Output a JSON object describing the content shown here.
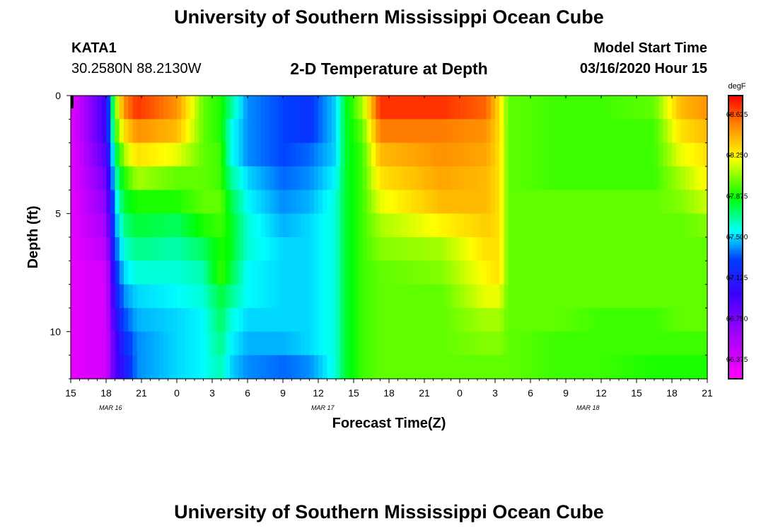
{
  "page": {
    "title_top": "University of Southern Mississippi Ocean Cube",
    "title_bottom": "University of Southern Mississippi Ocean Cube",
    "station_id": "KATA1",
    "station_coords": "30.2580N 88.2130W",
    "plot_title": "2-D Temperature at Depth",
    "model_label": "Model Start Time",
    "model_time": "03/16/2020 Hour 15"
  },
  "chart_data": {
    "type": "heatmap",
    "title": "2-D Temperature at Depth",
    "xlabel": "Forecast Time(Z)",
    "ylabel": "Depth (ft)",
    "x_hours": [
      0,
      72
    ],
    "y_depth_ft": [
      0,
      12
    ],
    "x_tick_labels": [
      "15",
      "18",
      "21",
      "0",
      "3",
      "6",
      "9",
      "12",
      "15",
      "18",
      "21",
      "0",
      "3",
      "6",
      "9",
      "12",
      "15",
      "18",
      "21"
    ],
    "y_tick_labels": [
      "0",
      "5",
      "10"
    ],
    "y_tick_values": [
      0,
      5,
      10
    ],
    "date_labels": [
      {
        "text": "MAR 16",
        "hour": 4.5
      },
      {
        "text": "MAR 17",
        "hour": 28.5
      },
      {
        "text": "MAR 18",
        "hour": 58.5
      }
    ],
    "colorbar": {
      "unit": "degF",
      "range": [
        66.2,
        68.8
      ],
      "tick_labels": [
        "68.625",
        "68.250",
        "67.875",
        "67.500",
        "67.125",
        "66.750",
        "66.375"
      ],
      "tick_values": [
        68.625,
        68.25,
        67.875,
        67.5,
        67.125,
        66.75,
        66.375
      ]
    },
    "keyframes": [
      {
        "hour": 0,
        "temps": [
          66.3,
          66.3,
          66.3,
          66.3,
          66.3,
          66.3,
          66.3,
          66.3,
          66.3,
          66.3,
          66.3,
          66.3
        ]
      },
      {
        "hour": 4,
        "temps": [
          67.0,
          67.0,
          66.9,
          66.8,
          66.7,
          66.6,
          66.5,
          66.4,
          66.4,
          66.4,
          66.4,
          66.4
        ]
      },
      {
        "hour": 5,
        "temps": [
          68.0,
          67.9,
          67.7,
          67.6,
          67.5,
          67.4,
          67.3,
          67.2,
          67.1,
          67.0,
          66.9,
          66.9
        ]
      },
      {
        "hour": 6,
        "temps": [
          68.5,
          68.3,
          68.1,
          67.9,
          67.8,
          67.7,
          67.6,
          67.5,
          67.4,
          67.3,
          67.2,
          67.1
        ]
      },
      {
        "hour": 7.5,
        "temps": [
          68.7,
          68.5,
          68.3,
          68.1,
          67.9,
          67.8,
          67.7,
          67.6,
          67.5,
          67.45,
          67.4,
          67.4
        ]
      },
      {
        "hour": 12,
        "temps": [
          68.5,
          68.4,
          68.2,
          68.0,
          67.9,
          67.75,
          67.65,
          67.6,
          67.55,
          67.5,
          67.5,
          67.5
        ]
      },
      {
        "hour": 15,
        "temps": [
          68.0,
          68.0,
          68.0,
          68.0,
          68.0,
          67.9,
          67.75,
          67.65,
          67.6,
          67.55,
          67.55,
          67.55
        ]
      },
      {
        "hour": 17,
        "temps": [
          67.9,
          67.9,
          67.95,
          67.95,
          68.0,
          67.95,
          67.9,
          67.95,
          67.8,
          67.75,
          67.7,
          67.65
        ]
      },
      {
        "hour": 18,
        "temps": [
          67.7,
          67.6,
          67.6,
          67.7,
          67.8,
          67.85,
          67.85,
          67.8,
          67.7,
          67.6,
          67.55,
          67.5
        ]
      },
      {
        "hour": 20,
        "temps": [
          67.4,
          67.4,
          67.4,
          67.5,
          67.55,
          67.6,
          67.6,
          67.55,
          67.55,
          67.5,
          67.45,
          67.4
        ]
      },
      {
        "hour": 24,
        "temps": [
          67.3,
          67.3,
          67.3,
          67.35,
          67.4,
          67.45,
          67.5,
          67.5,
          67.5,
          67.5,
          67.45,
          67.35
        ]
      },
      {
        "hour": 27,
        "temps": [
          67.25,
          67.25,
          67.35,
          67.4,
          67.45,
          67.5,
          67.5,
          67.5,
          67.5,
          67.5,
          67.5,
          67.4
        ]
      },
      {
        "hour": 30,
        "temps": [
          67.5,
          67.5,
          67.5,
          67.55,
          67.6,
          67.6,
          67.6,
          67.6,
          67.6,
          67.6,
          67.6,
          67.6
        ]
      },
      {
        "hour": 31,
        "temps": [
          67.8,
          67.8,
          67.8,
          67.8,
          67.8,
          67.8,
          67.8,
          67.8,
          67.8,
          67.8,
          67.8,
          67.8
        ]
      },
      {
        "hour": 33,
        "temps": [
          68.1,
          68.0,
          67.95,
          67.95,
          67.95,
          67.95,
          67.95,
          67.95,
          67.95,
          67.95,
          67.95,
          67.95
        ]
      },
      {
        "hour": 35,
        "temps": [
          68.7,
          68.55,
          68.4,
          68.3,
          68.2,
          68.1,
          68.05,
          68.0,
          68.0,
          68.0,
          68.0,
          68.0
        ]
      },
      {
        "hour": 42,
        "temps": [
          68.7,
          68.55,
          68.5,
          68.45,
          68.4,
          68.25,
          68.1,
          68.05,
          68.0,
          68.0,
          68.0,
          68.0
        ]
      },
      {
        "hour": 47,
        "temps": [
          68.6,
          68.5,
          68.45,
          68.4,
          68.4,
          68.35,
          68.3,
          68.25,
          68.2,
          68.1,
          68.05,
          68.0
        ]
      },
      {
        "hour": 48.5,
        "temps": [
          68.3,
          68.3,
          68.3,
          68.3,
          68.3,
          68.3,
          68.3,
          68.3,
          68.2,
          68.1,
          68.05,
          68.0
        ]
      },
      {
        "hour": 49.5,
        "temps": [
          68.0,
          68.0,
          68.0,
          68.0,
          68.0,
          68.0,
          68.0,
          68.0,
          68.0,
          68.0,
          68.0,
          68.0
        ]
      },
      {
        "hour": 55,
        "temps": [
          67.95,
          67.95,
          67.95,
          67.95,
          68.0,
          68.0,
          68.0,
          68.0,
          68.0,
          68.0,
          67.95,
          67.95
        ]
      },
      {
        "hour": 60,
        "temps": [
          67.95,
          67.95,
          67.95,
          67.95,
          68.0,
          68.0,
          68.0,
          68.0,
          68.0,
          67.95,
          67.95,
          67.95
        ]
      },
      {
        "hour": 66,
        "temps": [
          68.0,
          67.95,
          67.95,
          67.95,
          68.0,
          68.0,
          68.0,
          68.0,
          68.0,
          67.95,
          67.95,
          67.9
        ]
      },
      {
        "hour": 69,
        "temps": [
          68.4,
          68.3,
          68.2,
          68.1,
          68.05,
          68.0,
          68.0,
          68.0,
          68.0,
          68.0,
          67.95,
          67.9
        ]
      },
      {
        "hour": 72,
        "temps": [
          68.5,
          68.4,
          68.3,
          68.25,
          68.15,
          68.05,
          68.0,
          68.0,
          68.0,
          68.0,
          67.95,
          67.9
        ]
      }
    ]
  }
}
